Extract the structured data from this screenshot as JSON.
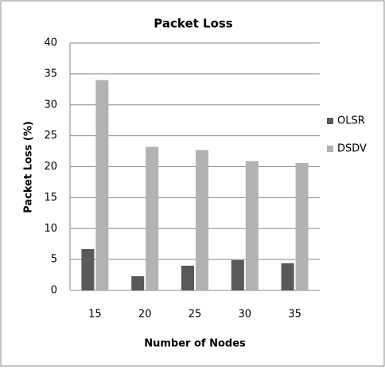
{
  "chart_data": {
    "type": "bar",
    "title": "Packet Loss",
    "x_label": "Number of Nodes",
    "y_label": "Packet Loss (%)",
    "categories": [
      "15",
      "20",
      "25",
      "30",
      "35"
    ],
    "series": [
      {
        "name": "OLSR",
        "color": "#595959",
        "values": [
          6.7,
          2.3,
          4.0,
          4.9,
          4.4
        ]
      },
      {
        "name": "DSDV",
        "color": "#b2b2b2",
        "values": [
          34.0,
          23.2,
          22.7,
          20.9,
          20.6
        ]
      }
    ],
    "ylim": [
      0,
      40
    ],
    "yticks": [
      0,
      5,
      10,
      15,
      20,
      25,
      30,
      35,
      40
    ],
    "grid": true,
    "legend": "right"
  }
}
